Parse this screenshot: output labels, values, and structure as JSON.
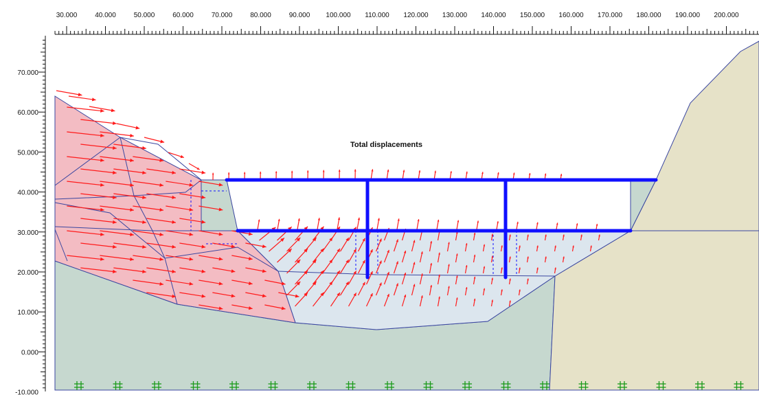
{
  "title": "Total displacements",
  "x_axis": {
    "ticks": [
      "30.000",
      "40.000",
      "50.000",
      "60.000",
      "70.000",
      "80.000",
      "90.000",
      "100.000",
      "110.000",
      "120.000",
      "130.000",
      "140.000",
      "150.000",
      "160.000",
      "170.000",
      "180.000",
      "190.000",
      "200.000"
    ]
  },
  "y_axis": {
    "ticks": [
      "70.000",
      "60.000",
      "50.000",
      "40.000",
      "30.000",
      "20.000",
      "10.000",
      "0.000",
      "-10.000"
    ]
  },
  "colors": {
    "displaced_soil": "#f2b8c0",
    "excavated_zone": "#dce6ee",
    "base_soil": "#c6d8cf",
    "right_hill": "#e6e2c8",
    "mesh_line": "#3a46a0",
    "structure": "#1010ff",
    "arrow": "#ff1a1a",
    "fixity": "#1a9a1a"
  },
  "legend": []
}
